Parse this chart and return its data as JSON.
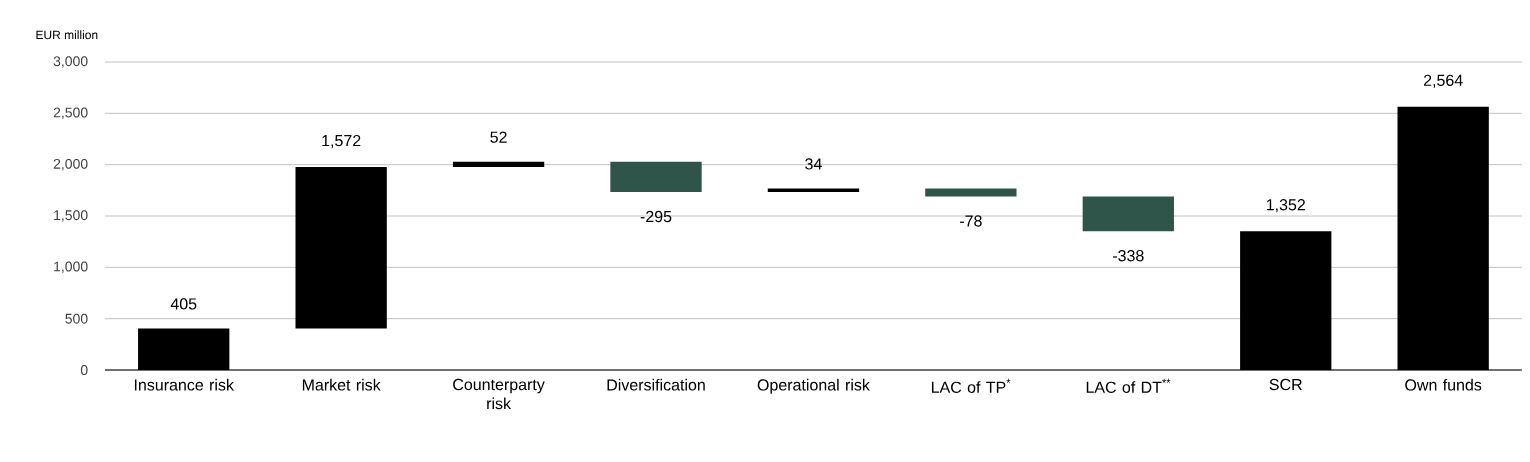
{
  "chart_data": {
    "type": "bar",
    "ylabel": "EUR million",
    "categories": [
      "Insurance risk",
      "Market risk",
      "Counterparty risk",
      "Diversification",
      "Operational risk",
      "LAC of TP$^{*}$",
      "LAC of DT$^{**}$",
      "SCR",
      "Own funds"
    ],
    "values": [
      405,
      1572,
      52,
      -295,
      34,
      -78,
      -338,
      1352,
      2564
    ],
    "base": [
      0,
      405,
      1977,
      2029,
      1734,
      1768,
      1690,
      0,
      0
    ],
    "colors": [
      "#000000",
      "#000000",
      "#000000",
      "#2f5449",
      "#000000",
      "#2f5449",
      "#2f5449",
      "#000000",
      "#000000"
    ],
    "value_labels": [
      "405",
      "1,572",
      "52",
      "-295",
      "34",
      "-78",
      "-338",
      "1,352",
      "2,564"
    ],
    "ylim": [
      0,
      3000
    ],
    "yticks": [
      {
        "value": 0,
        "label": "0"
      },
      {
        "value": 500,
        "label": "500"
      },
      {
        "value": 1000,
        "label": "1,000"
      },
      {
        "value": 1500,
        "label": "1,500"
      },
      {
        "value": 2000,
        "label": "2,000"
      },
      {
        "value": 2500,
        "label": "2,500"
      },
      {
        "value": 3000,
        "label": "3,000"
      }
    ],
    "grid": "y"
  }
}
